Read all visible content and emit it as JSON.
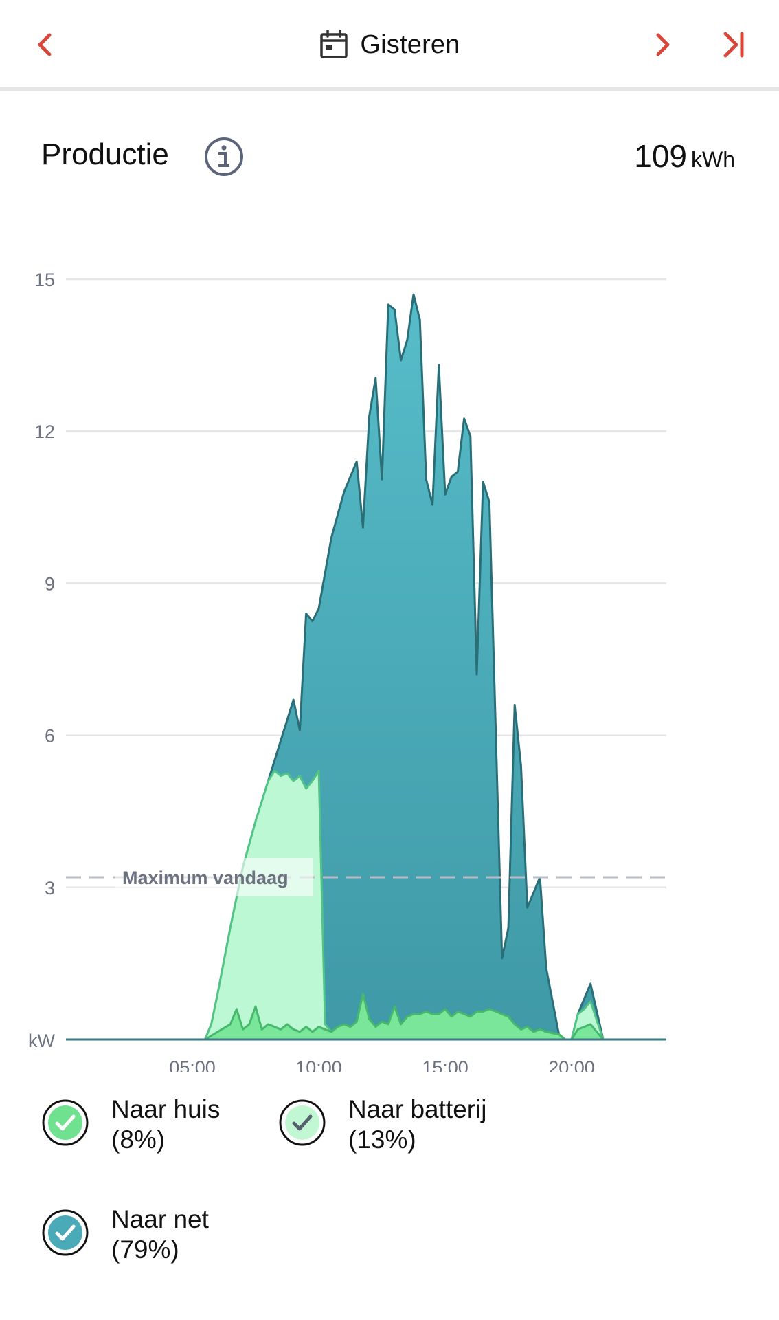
{
  "header": {
    "title": "Gisteren",
    "accent": "#d9473a"
  },
  "section": {
    "title": "Productie",
    "total_value": "109",
    "total_unit": "kWh"
  },
  "chart_data": {
    "type": "area",
    "unit_label": "kW",
    "ylim": [
      0,
      15
    ],
    "yticks": [
      "15",
      "12",
      "9",
      "6",
      "3"
    ],
    "yticks_values": [
      15,
      12,
      9,
      6,
      3
    ],
    "xlim": [
      0,
      23.75
    ],
    "xticks": [
      "05:00",
      "10:00",
      "15:00",
      "20:00"
    ],
    "xticks_values": [
      5,
      10,
      15,
      20
    ],
    "grid": true,
    "reference_line": {
      "label": "Maximum vandaag",
      "value": 3.2
    },
    "colors": {
      "net_fill_top": "#57bcc9",
      "net_fill_bottom": "#3f99a6",
      "net_stroke": "#2a6e78",
      "batterij_fill": "#bcf8d4",
      "batterij_stroke": "#52c485",
      "huis_fill": "#79e69a",
      "huis_stroke": "#46b86c",
      "grid": "#e6e6e6",
      "ref_line": "#b8bcc4"
    },
    "series": [
      {
        "name": "Naar net",
        "key": "total",
        "points": [
          [
            0,
            0
          ],
          [
            5.5,
            0
          ],
          [
            5.75,
            0.3
          ],
          [
            6,
            0.9
          ],
          [
            6.5,
            2.2
          ],
          [
            7,
            3.4
          ],
          [
            7.5,
            4.3
          ],
          [
            8,
            5.1
          ],
          [
            8.5,
            5.9
          ],
          [
            9,
            6.7
          ],
          [
            9.25,
            6.1
          ],
          [
            9.5,
            8.4
          ],
          [
            9.75,
            8.25
          ],
          [
            10,
            8.5
          ],
          [
            10.5,
            9.9
          ],
          [
            11,
            10.8
          ],
          [
            11.5,
            11.4
          ],
          [
            11.75,
            10.1
          ],
          [
            12,
            12.3
          ],
          [
            12.25,
            13.05
          ],
          [
            12.5,
            11.05
          ],
          [
            12.75,
            14.5
          ],
          [
            13,
            14.4
          ],
          [
            13.25,
            13.4
          ],
          [
            13.5,
            13.8
          ],
          [
            13.75,
            14.7
          ],
          [
            14,
            14.2
          ],
          [
            14.25,
            11.05
          ],
          [
            14.5,
            10.55
          ],
          [
            14.75,
            13.3
          ],
          [
            15,
            10.75
          ],
          [
            15.25,
            11.1
          ],
          [
            15.5,
            11.2
          ],
          [
            15.75,
            12.25
          ],
          [
            16,
            11.9
          ],
          [
            16.25,
            7.2
          ],
          [
            16.5,
            11.0
          ],
          [
            16.75,
            10.6
          ],
          [
            17.25,
            1.6
          ],
          [
            17.5,
            2.2
          ],
          [
            17.75,
            6.6
          ],
          [
            18,
            5.4
          ],
          [
            18.25,
            2.6
          ],
          [
            18.5,
            2.9
          ],
          [
            18.75,
            3.2
          ],
          [
            19,
            1.4
          ],
          [
            19.5,
            0.1
          ],
          [
            19.75,
            0
          ],
          [
            20,
            0
          ],
          [
            20.25,
            0.5
          ],
          [
            20.75,
            1.1
          ],
          [
            21.25,
            0
          ],
          [
            23.75,
            0
          ]
        ]
      },
      {
        "name": "Naar batterij",
        "key": "batterij",
        "points": [
          [
            0,
            0
          ],
          [
            5.5,
            0
          ],
          [
            5.75,
            0.3
          ],
          [
            6,
            0.9
          ],
          [
            6.5,
            2.2
          ],
          [
            7,
            3.4
          ],
          [
            7.5,
            4.3
          ],
          [
            8,
            5.1
          ],
          [
            8.25,
            5.3
          ],
          [
            8.5,
            5.2
          ],
          [
            8.75,
            5.25
          ],
          [
            9,
            5.1
          ],
          [
            9.25,
            5.2
          ],
          [
            9.5,
            4.95
          ],
          [
            9.75,
            5.1
          ],
          [
            10,
            5.3
          ],
          [
            10.25,
            0.3
          ],
          [
            10.5,
            0.15
          ],
          [
            19.5,
            0.1
          ],
          [
            19.75,
            0
          ],
          [
            20,
            0
          ],
          [
            20.25,
            0.5
          ],
          [
            20.5,
            0.6
          ],
          [
            20.75,
            0.75
          ],
          [
            21.25,
            0
          ],
          [
            23.75,
            0
          ]
        ]
      },
      {
        "name": "Naar huis",
        "key": "huis",
        "points": [
          [
            0,
            0
          ],
          [
            5.5,
            0
          ],
          [
            6,
            0.15
          ],
          [
            6.5,
            0.3
          ],
          [
            6.75,
            0.6
          ],
          [
            7,
            0.2
          ],
          [
            7.25,
            0.3
          ],
          [
            7.5,
            0.65
          ],
          [
            7.75,
            0.2
          ],
          [
            8,
            0.3
          ],
          [
            8.25,
            0.25
          ],
          [
            8.5,
            0.2
          ],
          [
            8.75,
            0.3
          ],
          [
            9,
            0.2
          ],
          [
            9.25,
            0.15
          ],
          [
            9.5,
            0.25
          ],
          [
            9.75,
            0.15
          ],
          [
            10,
            0.25
          ],
          [
            10.25,
            0.2
          ],
          [
            10.5,
            0.15
          ],
          [
            10.75,
            0.25
          ],
          [
            11,
            0.3
          ],
          [
            11.25,
            0.25
          ],
          [
            11.5,
            0.35
          ],
          [
            11.75,
            0.9
          ],
          [
            12,
            0.4
          ],
          [
            12.25,
            0.25
          ],
          [
            12.5,
            0.35
          ],
          [
            12.75,
            0.3
          ],
          [
            13,
            0.65
          ],
          [
            13.25,
            0.3
          ],
          [
            13.5,
            0.45
          ],
          [
            13.75,
            0.5
          ],
          [
            14,
            0.5
          ],
          [
            14.25,
            0.55
          ],
          [
            14.5,
            0.5
          ],
          [
            14.75,
            0.5
          ],
          [
            15,
            0.6
          ],
          [
            15.25,
            0.45
          ],
          [
            15.5,
            0.55
          ],
          [
            15.75,
            0.5
          ],
          [
            16,
            0.45
          ],
          [
            16.25,
            0.55
          ],
          [
            16.5,
            0.55
          ],
          [
            16.75,
            0.6
          ],
          [
            17,
            0.55
          ],
          [
            17.25,
            0.5
          ],
          [
            17.5,
            0.45
          ],
          [
            17.75,
            0.3
          ],
          [
            18,
            0.2
          ],
          [
            18.25,
            0.25
          ],
          [
            18.5,
            0.15
          ],
          [
            18.75,
            0.2
          ],
          [
            19,
            0.15
          ],
          [
            19.5,
            0.1
          ],
          [
            19.75,
            0
          ],
          [
            20,
            0
          ],
          [
            20.25,
            0.2
          ],
          [
            20.5,
            0.25
          ],
          [
            20.75,
            0.3
          ],
          [
            21.25,
            0
          ],
          [
            23.75,
            0
          ]
        ]
      }
    ]
  },
  "legend": [
    {
      "key": "huis",
      "label": "Naar huis",
      "pct": "(8%)",
      "color": "#6fe18f"
    },
    {
      "key": "batterij",
      "label": "Naar batterij",
      "pct": "(13%)",
      "color": "#c2f7d3"
    },
    {
      "key": "net",
      "label": "Naar net",
      "pct": "(79%)",
      "color": "#4aaab8"
    }
  ]
}
